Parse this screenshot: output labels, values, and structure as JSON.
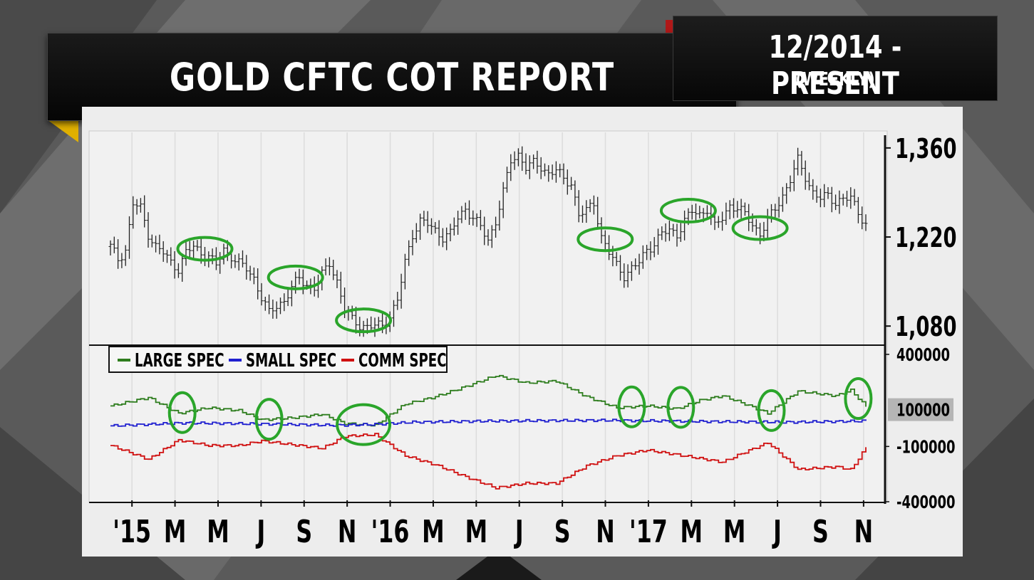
{
  "header": {
    "title": "GOLD CFTC COT REPORT",
    "date_range": "12/2014 - PRESENT",
    "frequency": "(WEEKLY)"
  },
  "chart_data": [
    {
      "type": "bar",
      "subtype": "ohlc-weekly",
      "title": "",
      "xlabel": "",
      "ylabel": "",
      "ylim": [
        1050,
        1380
      ],
      "y_ticks": [
        "1,360",
        "1,220",
        "1,080"
      ],
      "y_tick_values": [
        1360,
        1220,
        1080
      ],
      "x_tick_labels": [
        "'15",
        "M",
        "M",
        "J",
        "S",
        "N",
        "'16",
        "M",
        "M",
        "J",
        "S",
        "N",
        "'17",
        "M",
        "M",
        "J",
        "S",
        "N"
      ],
      "price_path": [
        [
          0,
          1205
        ],
        [
          2,
          1185
        ],
        [
          4,
          1200
        ],
        [
          6,
          1272
        ],
        [
          8,
          1265
        ],
        [
          10,
          1225
        ],
        [
          12,
          1205
        ],
        [
          14,
          1195
        ],
        [
          16,
          1180
        ],
        [
          18,
          1170
        ],
        [
          20,
          1195
        ],
        [
          22,
          1205
        ],
        [
          24,
          1195
        ],
        [
          26,
          1190
        ],
        [
          28,
          1175
        ],
        [
          30,
          1200
        ],
        [
          32,
          1190
        ],
        [
          34,
          1178
        ],
        [
          36,
          1170
        ],
        [
          38,
          1155
        ],
        [
          40,
          1125
        ],
        [
          42,
          1100
        ],
        [
          44,
          1112
        ],
        [
          46,
          1120
        ],
        [
          48,
          1140
        ],
        [
          50,
          1155
        ],
        [
          52,
          1145
        ],
        [
          54,
          1140
        ],
        [
          56,
          1160
        ],
        [
          58,
          1180
        ],
        [
          60,
          1150
        ],
        [
          62,
          1105
        ],
        [
          64,
          1090
        ],
        [
          66,
          1082
        ],
        [
          68,
          1078
        ],
        [
          70,
          1080
        ],
        [
          72,
          1082
        ],
        [
          74,
          1095
        ],
        [
          76,
          1120
        ],
        [
          78,
          1180
        ],
        [
          80,
          1225
        ],
        [
          82,
          1245
        ],
        [
          84,
          1240
        ],
        [
          86,
          1230
        ],
        [
          88,
          1220
        ],
        [
          90,
          1225
        ],
        [
          92,
          1250
        ],
        [
          94,
          1265
        ],
        [
          96,
          1250
        ],
        [
          98,
          1235
        ],
        [
          100,
          1215
        ],
        [
          102,
          1245
        ],
        [
          104,
          1290
        ],
        [
          106,
          1340
        ],
        [
          108,
          1350
        ],
        [
          110,
          1330
        ],
        [
          112,
          1335
        ],
        [
          114,
          1330
        ],
        [
          116,
          1320
        ],
        [
          118,
          1325
        ],
        [
          120,
          1310
        ],
        [
          122,
          1305
        ],
        [
          124,
          1255
        ],
        [
          126,
          1260
        ],
        [
          128,
          1275
        ],
        [
          130,
          1220
        ],
        [
          132,
          1195
        ],
        [
          134,
          1175
        ],
        [
          136,
          1160
        ],
        [
          138,
          1170
        ],
        [
          140,
          1180
        ],
        [
          142,
          1200
        ],
        [
          144,
          1210
        ],
        [
          146,
          1225
        ],
        [
          148,
          1230
        ],
        [
          150,
          1225
        ],
        [
          152,
          1245
        ],
        [
          154,
          1260
        ],
        [
          156,
          1255
        ],
        [
          158,
          1265
        ],
        [
          160,
          1235
        ],
        [
          162,
          1250
        ],
        [
          164,
          1270
        ],
        [
          166,
          1265
        ],
        [
          168,
          1255
        ],
        [
          170,
          1240
        ],
        [
          172,
          1225
        ],
        [
          174,
          1245
        ],
        [
          176,
          1265
        ],
        [
          178,
          1285
        ],
        [
          180,
          1310
        ],
        [
          182,
          1340
        ],
        [
          184,
          1315
        ],
        [
          186,
          1290
        ],
        [
          188,
          1280
        ],
        [
          190,
          1285
        ],
        [
          192,
          1275
        ],
        [
          194,
          1280
        ],
        [
          196,
          1280
        ],
        [
          198,
          1260
        ],
        [
          200,
          1240
        ]
      ],
      "highlighted_lows": [
        "'15 M",
        "'15 J",
        "'15 N",
        "'17",
        "'17 M",
        "'17 J"
      ]
    },
    {
      "type": "line",
      "title": "",
      "ylim": [
        -400000,
        450000
      ],
      "y_ticks": [
        "400000",
        "-100000",
        "-400000"
      ],
      "y_tick_values": [
        400000,
        -100000,
        -400000
      ],
      "current_marker": "100000",
      "legend": {
        "position": "top-left",
        "entries": [
          "LARGE SPEC",
          "SMALL SPEC",
          "COMM SPEC"
        ]
      },
      "series": [
        {
          "name": "LARGE SPEC",
          "color": "#2e7d1e",
          "path": [
            [
              0,
              120000
            ],
            [
              10,
              165000
            ],
            [
              18,
              80000
            ],
            [
              26,
              110000
            ],
            [
              34,
              95000
            ],
            [
              40,
              45000
            ],
            [
              48,
              55000
            ],
            [
              56,
              75000
            ],
            [
              62,
              25000
            ],
            [
              70,
              15000
            ],
            [
              78,
              130000
            ],
            [
              86,
              170000
            ],
            [
              94,
              225000
            ],
            [
              102,
              285000
            ],
            [
              110,
              245000
            ],
            [
              118,
              255000
            ],
            [
              126,
              170000
            ],
            [
              134,
              110000
            ],
            [
              142,
              120000
            ],
            [
              150,
              105000
            ],
            [
              156,
              150000
            ],
            [
              162,
              175000
            ],
            [
              168,
              130000
            ],
            [
              174,
              80000
            ],
            [
              182,
              200000
            ],
            [
              192,
              175000
            ],
            [
              196,
              205000
            ],
            [
              200,
              115000
            ]
          ]
        },
        {
          "name": "SMALL SPEC",
          "color": "#2020d0",
          "path": [
            [
              0,
              12000
            ],
            [
              20,
              28000
            ],
            [
              40,
              22000
            ],
            [
              60,
              15000
            ],
            [
              70,
              20000
            ],
            [
              80,
              32000
            ],
            [
              100,
              38000
            ],
            [
              130,
              42000
            ],
            [
              160,
              35000
            ],
            [
              180,
              32000
            ],
            [
              200,
              38000
            ]
          ]
        },
        {
          "name": "COMM SPEC",
          "color": "#d01010",
          "path": [
            [
              0,
              -95000
            ],
            [
              10,
              -170000
            ],
            [
              18,
              -65000
            ],
            [
              26,
              -95000
            ],
            [
              34,
              -95000
            ],
            [
              40,
              -70000
            ],
            [
              48,
              -90000
            ],
            [
              56,
              -110000
            ],
            [
              62,
              -45000
            ],
            [
              70,
              -35000
            ],
            [
              78,
              -150000
            ],
            [
              86,
              -200000
            ],
            [
              94,
              -265000
            ],
            [
              102,
              -325000
            ],
            [
              110,
              -300000
            ],
            [
              118,
              -300000
            ],
            [
              126,
              -205000
            ],
            [
              134,
              -150000
            ],
            [
              142,
              -120000
            ],
            [
              150,
              -145000
            ],
            [
              156,
              -165000
            ],
            [
              162,
              -185000
            ],
            [
              168,
              -130000
            ],
            [
              174,
              -80000
            ],
            [
              182,
              -225000
            ],
            [
              192,
              -210000
            ],
            [
              196,
              -225000
            ],
            [
              200,
              -105000
            ]
          ]
        }
      ],
      "highlighted_points": [
        "'15 M",
        "'15 J",
        "'15 N",
        "'17",
        "'17 M",
        "'17 J",
        "latest"
      ]
    }
  ],
  "colors": {
    "large_spec": "#2e7d1e",
    "small_spec": "#2020d0",
    "comm_spec": "#d01010",
    "circle": "#2aa52a"
  }
}
